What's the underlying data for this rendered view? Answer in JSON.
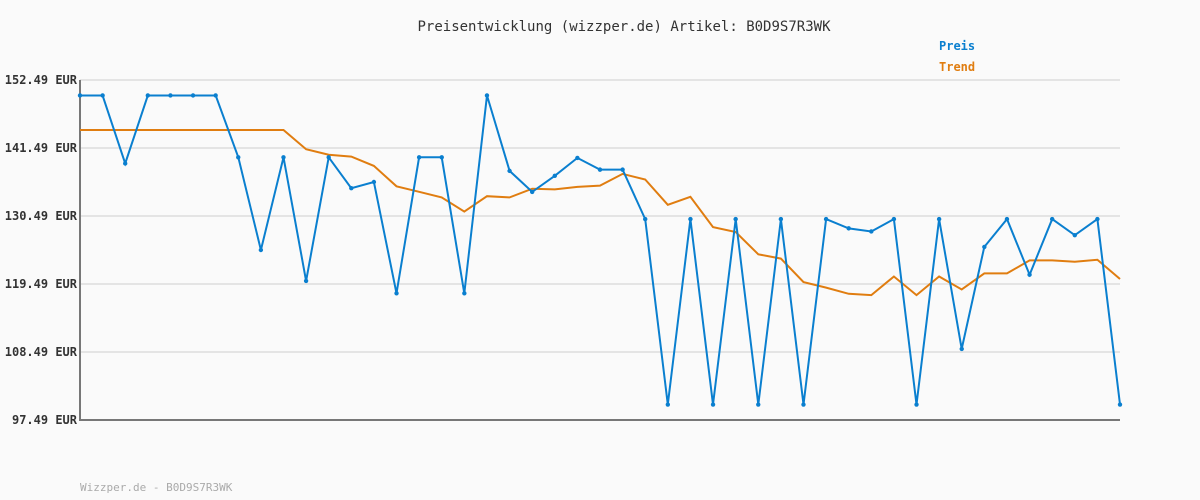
{
  "chart_data": {
    "type": "line",
    "title": "Preisentwicklung (wizzper.de) Artikel: B0D9S7R3WK",
    "xlabel": "",
    "ylabel": "",
    "ylim": [
      97.49,
      152.49
    ],
    "yticks": [
      "97.49 EUR",
      "108.49 EUR",
      "119.49 EUR",
      "130.49 EUR",
      "141.49 EUR",
      "152.49 EUR"
    ],
    "ytick_values": [
      97.49,
      108.49,
      119.49,
      130.49,
      141.49,
      152.49
    ],
    "grid": "horizontal",
    "legend_position": "top-right",
    "series": [
      {
        "name": "Preis",
        "color": "#0a7fcf",
        "markers": true,
        "values": [
          149.99,
          149.99,
          138.99,
          149.99,
          149.99,
          149.99,
          149.99,
          139.99,
          124.99,
          139.99,
          119.99,
          139.99,
          134.99,
          135.99,
          117.99,
          139.99,
          139.99,
          117.99,
          149.99,
          137.79,
          134.39,
          136.99,
          139.89,
          137.99,
          137.99,
          129.99,
          99.99,
          129.99,
          99.99,
          129.99,
          99.99,
          129.99,
          99.99,
          129.99,
          128.49,
          127.99,
          129.99,
          99.99,
          129.99,
          108.99,
          125.49,
          129.99,
          120.99,
          129.99,
          127.39,
          129.99,
          99.99
        ]
      },
      {
        "name": "Trend",
        "color": "#e07d10",
        "markers": false,
        "values": [
          144.4,
          144.4,
          144.4,
          144.4,
          144.4,
          144.4,
          144.4,
          144.4,
          144.4,
          144.4,
          141.3,
          140.4,
          140.1,
          138.6,
          135.3,
          134.4,
          133.5,
          131.2,
          133.7,
          133.5,
          134.9,
          134.8,
          135.2,
          135.4,
          137.3,
          136.4,
          132.3,
          133.6,
          128.7,
          127.9,
          124.3,
          123.6,
          119.8,
          118.9,
          117.9,
          117.7,
          120.7,
          117.7,
          120.7,
          118.6,
          121.2,
          121.2,
          123.3,
          123.3,
          123.1,
          123.4,
          120.3
        ]
      }
    ]
  },
  "footer": "Wizzper.de - B0D9S7R3WK"
}
